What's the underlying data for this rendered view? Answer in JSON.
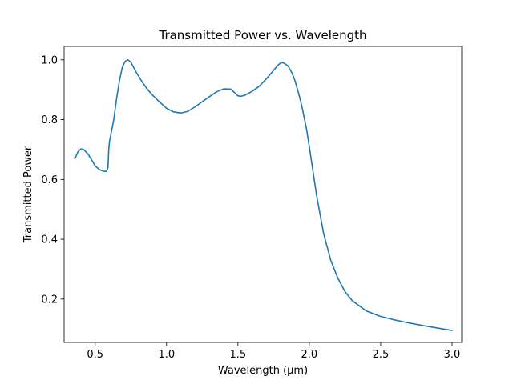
{
  "chart_data": {
    "type": "line",
    "title": "Transmitted Power vs. Wavelength",
    "xlabel": "Wavelength (µm)",
    "ylabel": "Transmitted Power",
    "xlim": [
      0.2825,
      3.0675
    ],
    "ylim": [
      0.055,
      1.045
    ],
    "xticks": [
      0.5,
      1.0,
      1.5,
      2.0,
      2.5,
      3.0
    ],
    "xtick_labels": [
      "0.5",
      "1.0",
      "1.5",
      "2.0",
      "2.5",
      "3.0"
    ],
    "yticks": [
      0.2,
      0.4,
      0.6,
      0.8,
      1.0
    ],
    "ytick_labels": [
      "0.2",
      "0.4",
      "0.6",
      "0.8",
      "1.0"
    ],
    "grid": false,
    "legend": "none",
    "line_color": "#1f77b4",
    "series": [
      {
        "x": [
          0.35,
          0.36,
          0.38,
          0.4,
          0.42,
          0.45,
          0.48,
          0.5,
          0.53,
          0.56,
          0.58,
          0.59,
          0.595,
          0.6,
          0.605,
          0.61,
          0.63,
          0.65,
          0.67,
          0.69,
          0.71,
          0.73,
          0.75,
          0.78,
          0.82,
          0.86,
          0.9,
          0.95,
          1.0,
          1.05,
          1.1,
          1.15,
          1.2,
          1.25,
          1.3,
          1.35,
          1.4,
          1.45,
          1.48,
          1.5,
          1.52,
          1.55,
          1.6,
          1.65,
          1.7,
          1.75,
          1.78,
          1.8,
          1.82,
          1.85,
          1.88,
          1.9,
          1.93,
          1.95,
          1.98,
          2.0,
          2.05,
          2.1,
          2.15,
          2.2,
          2.25,
          2.3,
          2.4,
          2.5,
          2.6,
          2.7,
          2.8,
          2.9,
          3.0
        ],
        "y": [
          0.672,
          0.671,
          0.693,
          0.702,
          0.7,
          0.685,
          0.662,
          0.645,
          0.633,
          0.627,
          0.627,
          0.64,
          0.7,
          0.725,
          0.738,
          0.75,
          0.8,
          0.87,
          0.93,
          0.975,
          0.995,
          1.0,
          0.992,
          0.965,
          0.933,
          0.905,
          0.883,
          0.86,
          0.838,
          0.826,
          0.822,
          0.828,
          0.843,
          0.86,
          0.877,
          0.893,
          0.903,
          0.902,
          0.889,
          0.88,
          0.878,
          0.882,
          0.895,
          0.912,
          0.937,
          0.965,
          0.982,
          0.99,
          0.99,
          0.98,
          0.955,
          0.93,
          0.88,
          0.84,
          0.77,
          0.71,
          0.55,
          0.42,
          0.33,
          0.27,
          0.225,
          0.195,
          0.16,
          0.142,
          0.13,
          0.12,
          0.111,
          0.103,
          0.095
        ]
      }
    ]
  }
}
